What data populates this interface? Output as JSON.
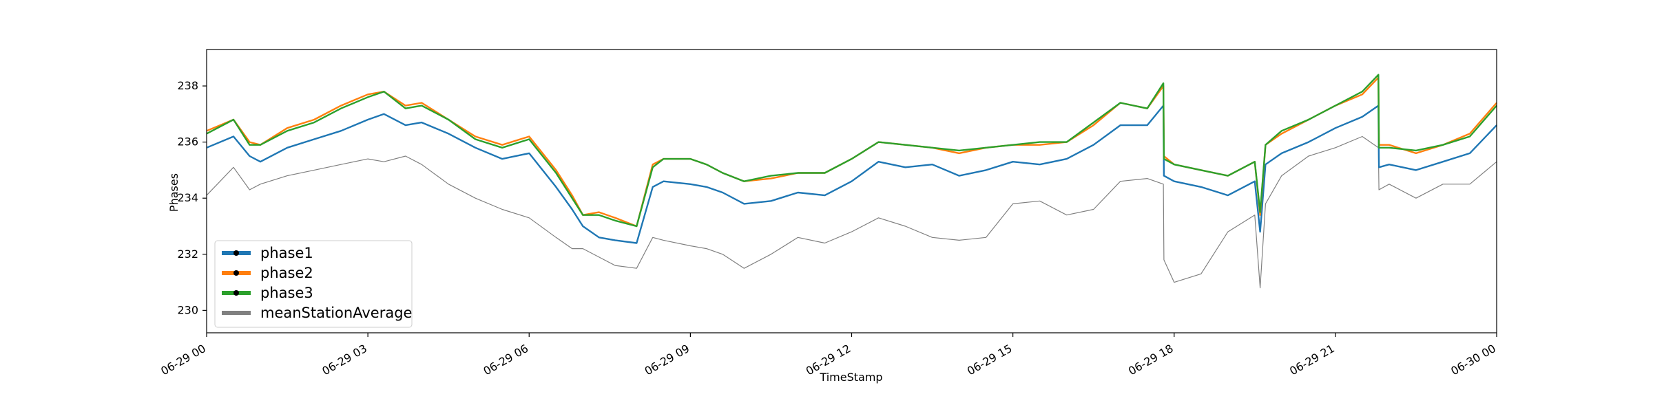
{
  "chart_data": {
    "type": "line",
    "title": "",
    "xlabel": "TimeStamp",
    "ylabel": "Phases",
    "xlim": [
      "06-29 00",
      "06-30 00"
    ],
    "ylim": [
      229.2,
      239.3
    ],
    "x_ticks": [
      "06-29 00",
      "06-29 03",
      "06-29 06",
      "06-29 09",
      "06-29 12",
      "06-29 15",
      "06-29 18",
      "06-29 21",
      "06-30 00"
    ],
    "y_ticks": [
      230,
      232,
      234,
      236,
      238
    ],
    "grid": false,
    "legend_position": "lower-left",
    "x_hours": [
      0,
      0.5,
      0.8,
      1.0,
      1.5,
      2.0,
      2.5,
      3.0,
      3.3,
      3.7,
      4.0,
      4.5,
      5.0,
      5.5,
      6.0,
      6.5,
      6.8,
      7.0,
      7.3,
      7.6,
      8.0,
      8.3,
      8.5,
      9.0,
      9.3,
      9.6,
      10.0,
      10.5,
      11.0,
      11.5,
      12.0,
      12.5,
      13.0,
      13.5,
      14.0,
      14.5,
      15.0,
      15.5,
      16.0,
      16.5,
      17.0,
      17.5,
      17.8,
      17.81,
      18.0,
      18.5,
      19.0,
      19.5,
      19.6,
      19.7,
      20.0,
      20.5,
      21.0,
      21.5,
      21.8,
      21.81,
      22.0,
      22.5,
      23.0,
      23.5,
      24.0
    ],
    "series": [
      {
        "name": "phase1",
        "color": "#1f77b4",
        "values": [
          235.8,
          236.2,
          235.5,
          235.3,
          235.8,
          236.1,
          236.4,
          236.8,
          237.0,
          236.6,
          236.7,
          236.3,
          235.8,
          235.4,
          235.6,
          234.4,
          233.6,
          233.0,
          232.6,
          232.5,
          232.4,
          234.4,
          234.6,
          234.5,
          234.4,
          234.2,
          233.8,
          233.9,
          234.2,
          234.1,
          234.6,
          235.3,
          235.1,
          235.2,
          234.8,
          235.0,
          235.3,
          235.2,
          235.4,
          235.9,
          236.6,
          236.6,
          237.3,
          234.8,
          234.6,
          234.4,
          234.1,
          234.6,
          232.8,
          235.2,
          235.6,
          236.0,
          236.5,
          236.9,
          237.3,
          235.1,
          235.2,
          235.0,
          235.3,
          235.6,
          236.6
        ]
      },
      {
        "name": "phase2",
        "color": "#ff7f0e",
        "values": [
          236.4,
          236.8,
          236.0,
          235.9,
          236.5,
          236.8,
          237.3,
          237.7,
          237.8,
          237.3,
          237.4,
          236.8,
          236.2,
          235.9,
          236.2,
          235.0,
          234.1,
          233.4,
          233.5,
          233.3,
          233.0,
          235.2,
          235.4,
          235.4,
          235.2,
          234.9,
          234.6,
          234.7,
          234.9,
          234.9,
          235.4,
          236.0,
          235.9,
          235.8,
          235.6,
          235.8,
          235.9,
          235.9,
          236.0,
          236.6,
          237.4,
          237.2,
          238.0,
          235.5,
          235.2,
          235.0,
          234.8,
          235.3,
          233.4,
          235.9,
          236.3,
          236.8,
          237.3,
          237.7,
          238.3,
          235.9,
          235.9,
          235.6,
          235.9,
          236.3,
          237.4
        ]
      },
      {
        "name": "phase3",
        "color": "#2ca02c",
        "values": [
          236.3,
          236.8,
          235.9,
          235.9,
          236.4,
          236.7,
          237.2,
          237.6,
          237.8,
          237.2,
          237.3,
          236.8,
          236.1,
          235.8,
          236.1,
          234.9,
          234.0,
          233.4,
          233.4,
          233.2,
          233.0,
          235.1,
          235.4,
          235.4,
          235.2,
          234.9,
          234.6,
          234.8,
          234.9,
          234.9,
          235.4,
          236.0,
          235.9,
          235.8,
          235.7,
          235.8,
          235.9,
          236.0,
          236.0,
          236.7,
          237.4,
          237.2,
          238.1,
          235.4,
          235.2,
          235.0,
          234.8,
          235.3,
          233.5,
          235.9,
          236.4,
          236.8,
          237.3,
          237.8,
          238.4,
          235.8,
          235.8,
          235.7,
          235.9,
          236.2,
          237.3
        ]
      },
      {
        "name": "meanStationAverage",
        "color": "#808080",
        "values": [
          234.1,
          235.1,
          234.3,
          234.5,
          234.8,
          235.0,
          235.2,
          235.4,
          235.3,
          235.5,
          235.2,
          234.5,
          234.0,
          233.6,
          233.3,
          232.6,
          232.2,
          232.2,
          231.9,
          231.6,
          231.5,
          232.6,
          232.5,
          232.3,
          232.2,
          232.0,
          231.5,
          232.0,
          232.6,
          232.4,
          232.8,
          233.3,
          233.0,
          232.6,
          232.5,
          232.6,
          233.8,
          233.9,
          233.4,
          233.6,
          234.6,
          234.7,
          234.5,
          231.8,
          231.0,
          231.3,
          232.8,
          233.4,
          230.8,
          233.8,
          234.8,
          235.5,
          235.8,
          236.2,
          235.8,
          234.3,
          234.5,
          234.0,
          234.5,
          234.5,
          235.3
        ]
      }
    ]
  }
}
